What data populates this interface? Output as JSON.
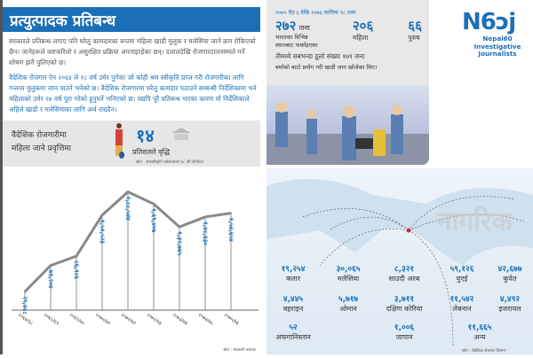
{
  "title": "प्रत्युत्पादक प्रतिबन्ध",
  "para1": "सरकारले प्रतिबन्ध लगाए पनि घरेलु कामदारका रूपमा महिला खाडी मुलुक र मलेसिया जाने क्रम रोकिएको छैन। जानेहरूले कष्टकरिलो र असुरक्षित प्रक्रिया अपनाइरहेका छन्। दलालदेखि रोजगारदातासम्मले गर्ने शोषण झनै पुलिएको छ।",
  "para2": "वैदेशिक रोजगार ऐन २०६४ ले १८ वर्ष उमेर पुगेका जो कोही श्रम स्वीकृति प्राप्त गरी रोजगारीका लागि गन्तव्य मुलुकमा जान पाउने भनेको छ। वैदेशिक रोजगारमा घरेलु कामदार पठाउने सम्बन्धी निर्देशिकामा भने महिलाको उमेर २४ वर्ष पूरा गरेको हुनुपर्ने भनिएको छ। यद्यपि पूरै प्रतिबन्ध भएका कारण यो निर्देशिकाले अहिले खाडी र मलेसियाका लागि अर्थ राख्दैन।",
  "stat": {
    "label_line1": "वैदेशिक रोजगारीमा",
    "label_line2": "महिला जाने प्रवृत्तिमा",
    "value": "१४",
    "unit": "प्रतिशतले वृद्धि",
    "source": "स्रोत : श्रमस्वीकृति प्रवेशपत्रको ४८ औं प्रतिवेदन"
  },
  "chart_source": "स्रोत : सरकारी तथ्यांक",
  "chart_data": {
    "type": "line",
    "title": "",
    "xlabel": "",
    "ylabel": "",
    "categories": [
      "२०६७/६८",
      "२०६८/६९",
      "२०६९/७०",
      "२०७०/७१",
      "२०७१/७२",
      "२०७२/७३",
      "२०७३/७४",
      "२०७४/७५",
      "२०७५/७६"
    ],
    "labels": [
      "२९,४८८",
      "७१,२०४",
      "८६,१८६",
      "१,५१,५२३",
      "१,८८,५४४",
      "१,६९,४०७",
      "१,३२,७४५",
      "१,४८,६३०",
      "१,५४,६५४"
    ],
    "values": [
      29488,
      71204,
      86186,
      151523,
      188544,
      169407,
      132745,
      148630,
      154654
    ],
    "ylim": [
      0,
      195000
    ],
    "grid": false,
    "color": "#888888",
    "label_color": "#1b6fb8"
  },
  "top_right": {
    "date": "२०७५ चैत ६ देखि २०७६ कात्तिक १८ सम्म",
    "total": "२७२",
    "total_unit": "जना",
    "total_desc1": "भारतका विभिन्न",
    "total_desc2": "स्थानबाट फर्काइएका",
    "women": "२०६",
    "women_label": "महिला",
    "men": "६६",
    "men_label": "पुरुष",
    "line1": "तीमध्ये सबभन्दा ठूलो संख्या १७९ जना",
    "line2": "बर्माको बाटो प्रयोग गरी खाडी जान खोजेका थिए।"
  },
  "logo": {
    "mark": "N6ɔj",
    "line1": "Nepal60",
    "line2": "Investigative",
    "line3": "Journalists"
  },
  "countries": [
    {
      "value": "१९,२५४",
      "name": "कतार"
    },
    {
      "value": "३०,०६५",
      "name": "मलेसिया"
    },
    {
      "value": "८,३२१",
      "name": "साउदी अरब"
    },
    {
      "value": "५९,१२६",
      "name": "युएई"
    },
    {
      "value": "४२,६७७",
      "name": "कुवेत"
    },
    {
      "value": "४,४४५",
      "name": "बहराइन"
    },
    {
      "value": "५,७१७",
      "name": "ओमान"
    },
    {
      "value": "३,७११",
      "name": "दक्षिण कोरिया"
    },
    {
      "value": "११,५४२",
      "name": "लेबनान"
    },
    {
      "value": "४,४९२",
      "name": "इजरायल"
    },
    {
      "value": "५२",
      "name": "अफगानिस्तान"
    },
    {
      "value": "१,००६",
      "name": "जापान"
    },
    {
      "value": "११,६६५",
      "name": "अन्य"
    }
  ],
  "map_source": "स्रोत : वैदेशिक रोजगार विभाग",
  "watermark": "नागरिक",
  "colors": {
    "accent": "#1b6fb8",
    "line": "#888888"
  }
}
